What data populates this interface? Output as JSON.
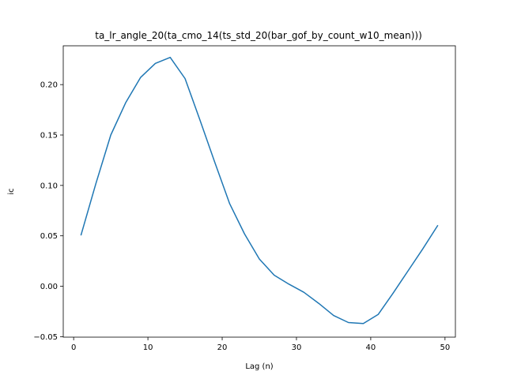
{
  "chart_data": {
    "type": "line",
    "title": "ta_lr_angle_20(ta_cmo_14(ts_std_20(bar_gof_by_count_w10_mean)))",
    "xlabel": "Lag (n)",
    "ylabel": "ic",
    "xlim": [
      -1.4,
      51.4
    ],
    "ylim": [
      -0.0505,
      0.2385
    ],
    "xticks": [
      0,
      10,
      20,
      30,
      40,
      50
    ],
    "yticks": [
      -0.05,
      0.0,
      0.05,
      0.1,
      0.15,
      0.2
    ],
    "ytick_labels": [
      "−0.05",
      "0.00",
      "0.05",
      "0.10",
      "0.15",
      "0.20"
    ],
    "grid": false,
    "series": [
      {
        "color": "#1f77b4",
        "x": [
          1,
          3,
          5,
          7,
          9,
          11,
          13,
          15,
          17,
          19,
          21,
          23,
          25,
          27,
          29,
          31,
          33,
          35,
          37,
          39,
          41,
          43,
          45,
          47,
          49
        ],
        "y": [
          0.051,
          0.102,
          0.15,
          0.182,
          0.207,
          0.221,
          0.227,
          0.206,
          0.165,
          0.123,
          0.082,
          0.052,
          0.027,
          0.011,
          0.002,
          -0.006,
          -0.017,
          -0.029,
          -0.036,
          -0.037,
          -0.028,
          -0.007,
          0.015,
          0.037,
          0.06
        ]
      }
    ]
  }
}
